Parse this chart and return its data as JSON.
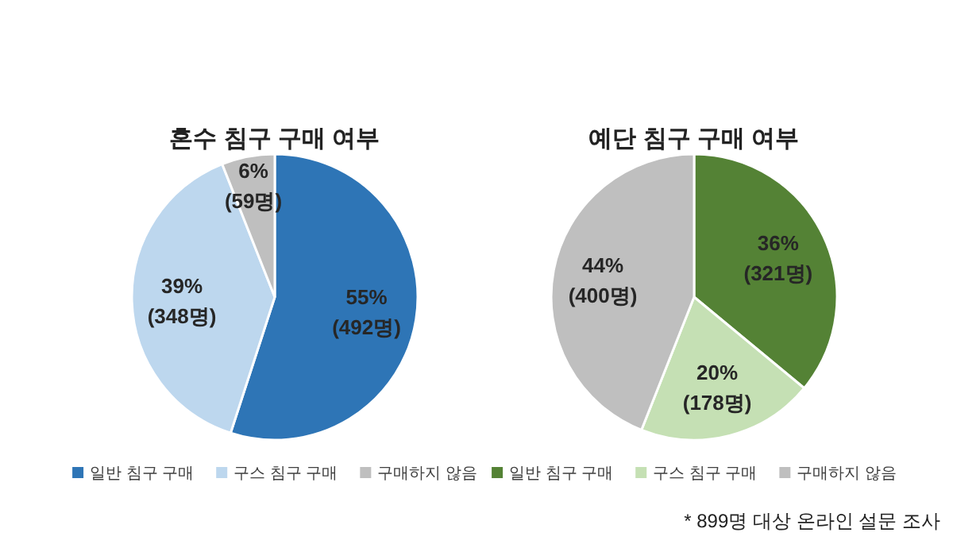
{
  "chart_data": [
    {
      "type": "pie",
      "title": "혼수 침구 구매 여부",
      "categories": [
        "일반 침구 구매",
        "구스 침구 구매",
        "구매하지 않음"
      ],
      "values": [
        55,
        39,
        6
      ],
      "colors": [
        "#2e75b6",
        "#bdd7ee",
        "#bfbfbf"
      ],
      "value_labels": [
        "55% (492명)",
        "39% (348명)",
        "6% (59명)"
      ],
      "legend": "bottom"
    },
    {
      "type": "pie",
      "title": "예단 침구 구매 여부",
      "categories": [
        "일반 침구 구매",
        "구스 침구 구매",
        "구매하지 않음"
      ],
      "values": [
        36,
        20,
        44
      ],
      "colors": [
        "#548235",
        "#c5e0b4",
        "#bfbfbf"
      ],
      "value_labels": [
        "36% (321명)",
        "20% (178명)",
        "44% (400명)"
      ],
      "legend": "bottom",
      "annotations": [
        "* 899명 대상 온라인 설문 조사"
      ]
    }
  ]
}
